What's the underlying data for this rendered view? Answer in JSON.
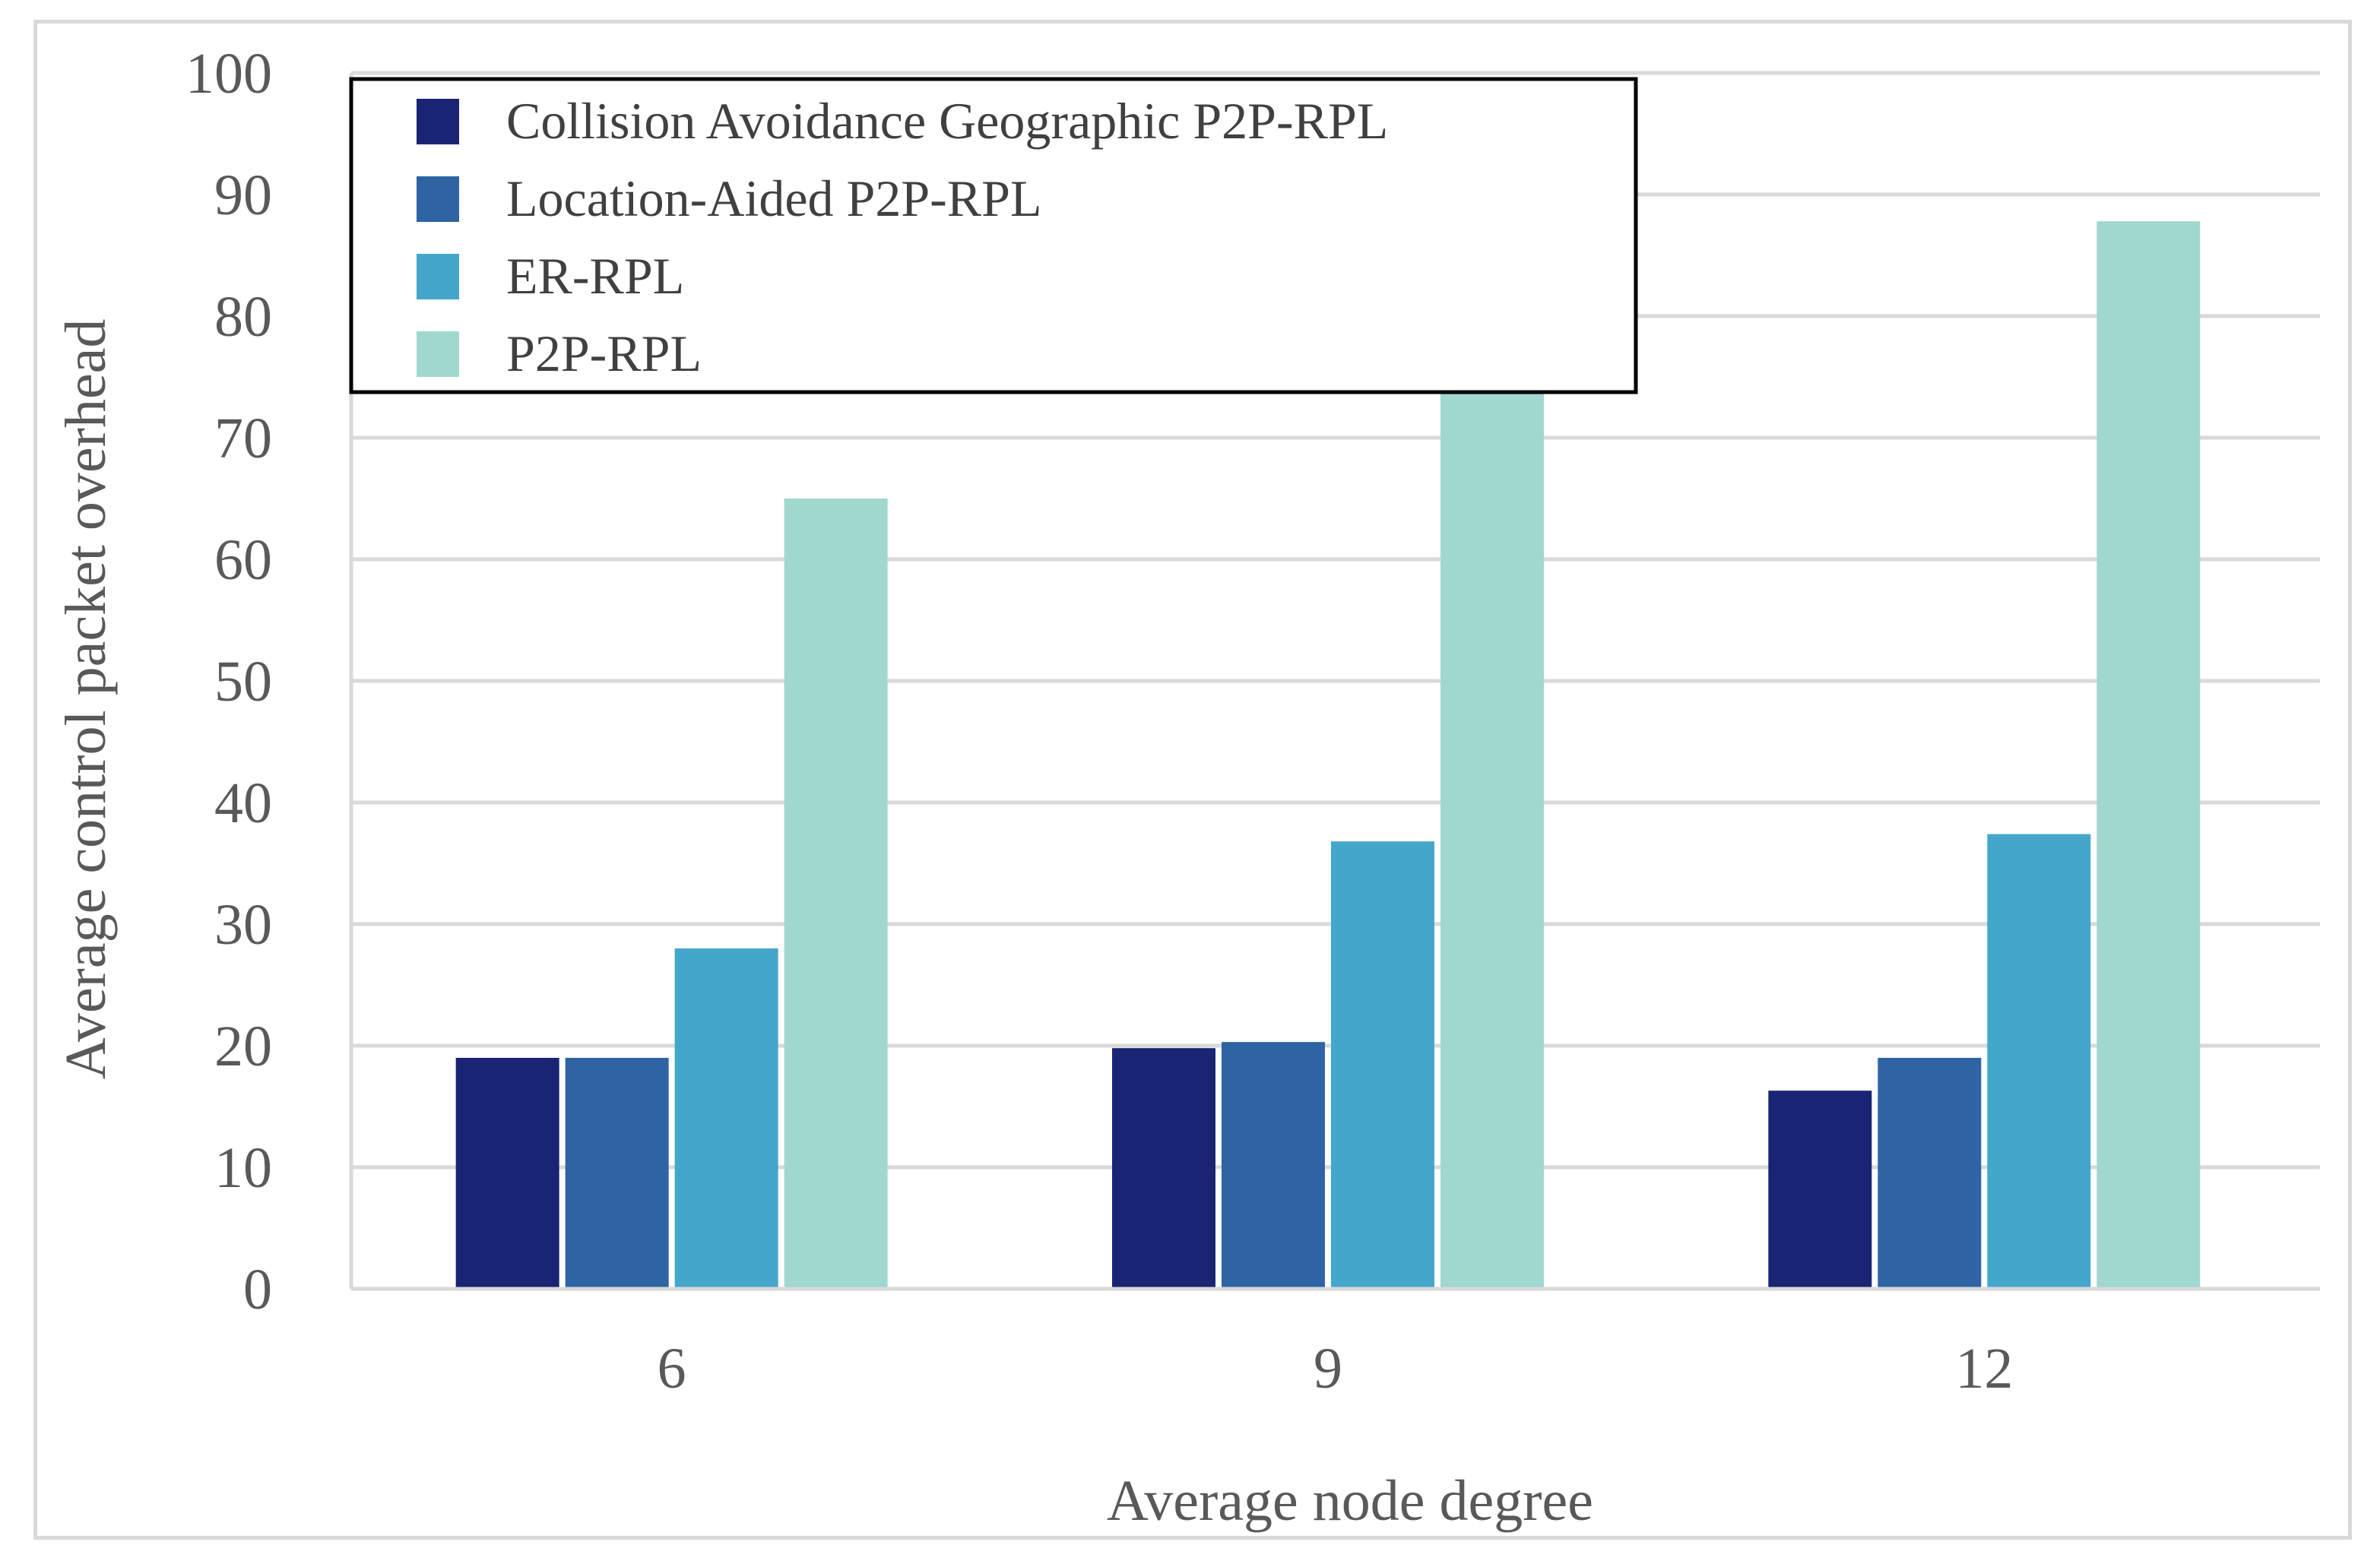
{
  "chart_data": {
    "type": "bar",
    "title": "",
    "xlabel": "Average node degree",
    "ylabel": "Average control packet overhead",
    "categories": [
      "6",
      "9",
      "12"
    ],
    "ylim": [
      0,
      100
    ],
    "yticks": [
      0,
      10,
      20,
      30,
      40,
      50,
      60,
      70,
      80,
      90,
      100
    ],
    "grid": true,
    "legend_position": "top-left",
    "series": [
      {
        "name": "Collision Avoidance Geographic P2P-RPL",
        "color": "#1a2474",
        "values": [
          19,
          19.8,
          16.3
        ]
      },
      {
        "name": "Location-Aided P2P-RPL",
        "color": "#2e64a3",
        "values": [
          19,
          20.3,
          19
        ]
      },
      {
        "name": "ER-RPL",
        "color": "#45a6cc",
        "values": [
          28,
          36.8,
          37.4
        ]
      },
      {
        "name": "P2P-RPL",
        "color": "#a0d8cf",
        "values": [
          65,
          75.8,
          87.8
        ]
      }
    ]
  }
}
